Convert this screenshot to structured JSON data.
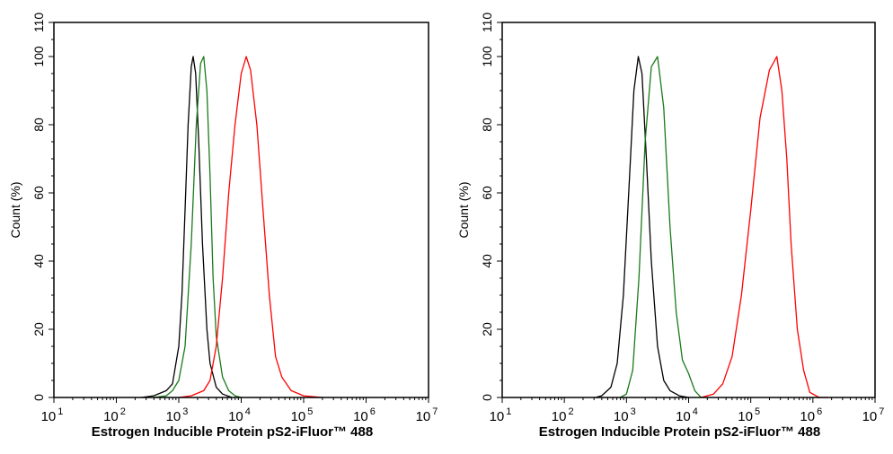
{
  "chart_data": [
    {
      "type": "line",
      "title": "",
      "xlabel": "Estrogen Inducible Protein pS2-iFluor™ 488",
      "ylabel": "Count  (%)",
      "xscale": "log",
      "xlim": [
        10,
        10000000
      ],
      "ylim": [
        0,
        110
      ],
      "x_tick_labels": [
        {
          "base": "10",
          "exp": "1"
        },
        {
          "base": "10",
          "exp": "2"
        },
        {
          "base": "10",
          "exp": "3"
        },
        {
          "base": "10",
          "exp": "4"
        },
        {
          "base": "10",
          "exp": "5"
        },
        {
          "base": "10",
          "exp": "6"
        },
        {
          "base": "10",
          "exp": "7"
        }
      ],
      "y_ticks": [
        0,
        20,
        40,
        60,
        80,
        100,
        110
      ],
      "grid": false,
      "series": [
        {
          "name": "black",
          "color": "#000000",
          "log10_x": [
            2.4,
            2.6,
            2.8,
            2.9,
            3.0,
            3.05,
            3.1,
            3.15,
            3.2,
            3.23,
            3.27,
            3.32,
            3.38,
            3.45,
            3.5,
            3.6,
            3.7,
            3.85
          ],
          "y": [
            0,
            0.5,
            2,
            4,
            15,
            30,
            55,
            80,
            97,
            100,
            95,
            75,
            45,
            20,
            10,
            3,
            1,
            0
          ]
        },
        {
          "name": "green",
          "color": "#1a7a1a",
          "log10_x": [
            2.6,
            2.8,
            2.9,
            3.0,
            3.1,
            3.2,
            3.28,
            3.35,
            3.4,
            3.45,
            3.5,
            3.55,
            3.6,
            3.7,
            3.8,
            3.9,
            4.0
          ],
          "y": [
            0,
            0.5,
            2,
            5,
            15,
            45,
            80,
            98,
            100,
            90,
            65,
            35,
            18,
            6,
            2,
            0.5,
            0
          ]
        },
        {
          "name": "red",
          "color": "#ff0000",
          "log10_x": [
            3.0,
            3.2,
            3.4,
            3.5,
            3.6,
            3.7,
            3.8,
            3.9,
            4.0,
            4.08,
            4.15,
            4.25,
            4.35,
            4.45,
            4.55,
            4.65,
            4.8,
            5.0,
            5.3
          ],
          "y": [
            0,
            0.5,
            2,
            5,
            15,
            35,
            60,
            80,
            95,
            100,
            96,
            80,
            55,
            30,
            12,
            6,
            2,
            0.5,
            0
          ]
        }
      ]
    },
    {
      "type": "line",
      "title": "",
      "xlabel": "Estrogen Inducible Protein pS2-iFluor™ 488",
      "ylabel": "Count  (%)",
      "xscale": "log",
      "xlim": [
        10,
        10000000
      ],
      "ylim": [
        0,
        110
      ],
      "x_tick_labels": [
        {
          "base": "10",
          "exp": "1"
        },
        {
          "base": "10",
          "exp": "2"
        },
        {
          "base": "10",
          "exp": "3"
        },
        {
          "base": "10",
          "exp": "4"
        },
        {
          "base": "10",
          "exp": "5"
        },
        {
          "base": "10",
          "exp": "6"
        },
        {
          "base": "10",
          "exp": "7"
        }
      ],
      "y_ticks": [
        0,
        20,
        40,
        60,
        80,
        100,
        110
      ],
      "grid": false,
      "series": [
        {
          "name": "black",
          "color": "#000000",
          "log10_x": [
            2.5,
            2.6,
            2.75,
            2.85,
            2.95,
            3.05,
            3.12,
            3.19,
            3.25,
            3.32,
            3.4,
            3.5,
            3.6,
            3.7,
            3.85,
            4.0
          ],
          "y": [
            0,
            0.5,
            3,
            10,
            30,
            65,
            90,
            100,
            95,
            70,
            40,
            15,
            5,
            2,
            0.5,
            0
          ]
        },
        {
          "name": "green",
          "color": "#1a7a1a",
          "log10_x": [
            2.9,
            3.0,
            3.1,
            3.2,
            3.3,
            3.4,
            3.5,
            3.6,
            3.7,
            3.8,
            3.9,
            4.0,
            4.1,
            4.2
          ],
          "y": [
            0,
            1,
            8,
            35,
            75,
            97,
            100,
            85,
            50,
            25,
            11,
            7,
            2,
            0
          ]
        },
        {
          "name": "red",
          "color": "#ff0000",
          "log10_x": [
            4.2,
            4.3,
            4.4,
            4.55,
            4.7,
            4.85,
            5.0,
            5.15,
            5.3,
            5.42,
            5.5,
            5.58,
            5.65,
            5.75,
            5.85,
            5.95,
            6.1,
            6.25
          ],
          "y": [
            0,
            0.5,
            1,
            4,
            12,
            30,
            55,
            82,
            96,
            100,
            90,
            70,
            45,
            20,
            8,
            1.5,
            0,
            0
          ]
        }
      ]
    }
  ]
}
